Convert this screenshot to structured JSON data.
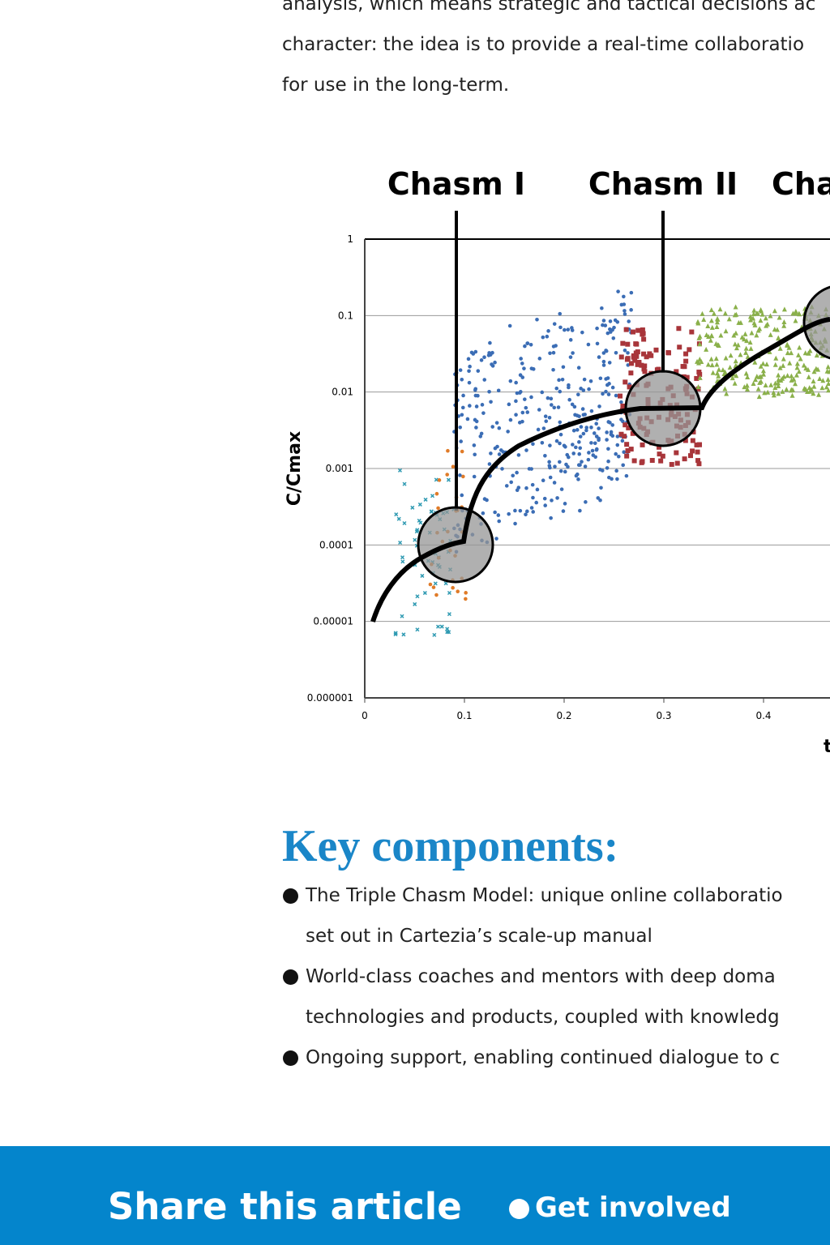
{
  "intro": {
    "lines": [
      "analysis, which means strategic and tactical decisions ac",
      "character: the idea is to provide a real-time collaboratio",
      "for use in the long-term."
    ]
  },
  "figure": {
    "chasms": [
      "Chasm I",
      "Chasm II",
      "Cha"
    ],
    "y_label": "C/Cmax",
    "x_label": "t",
    "yticks": [
      "1",
      "0.1",
      "0.01",
      "0.001",
      "0.0001",
      "0.00001",
      "0.000001"
    ],
    "xticks": [
      "0",
      "0.1",
      "0.2",
      "0.3",
      "0.4"
    ]
  },
  "key_components": {
    "title": "Key components:",
    "items": [
      [
        "The Triple Chasm Model: unique online collaboratio",
        "set out in Cartezia’s scale-up manual"
      ],
      [
        "World-class coaches and mentors with deep doma",
        "technologies and products, coupled with knowledg"
      ],
      [
        "Ongoing support, enabling continued dialogue to c"
      ]
    ]
  },
  "footer": {
    "share": "Share this article",
    "get_involved": "Get involved"
  }
}
